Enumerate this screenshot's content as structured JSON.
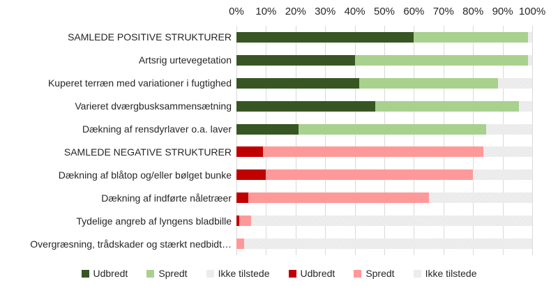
{
  "colors": {
    "positive_udbredt": "#375623",
    "positive_spredt": "#a9d18e",
    "negative_udbredt": "#c00000",
    "negative_spredt": "#ff9999",
    "ikke_tilstede": "#f1f1f1",
    "gridline": "#d9d9d9"
  },
  "legend": {
    "items": [
      {
        "label": "Udbredt",
        "color": "#375623"
      },
      {
        "label": "Spredt",
        "color": "#a9d18e"
      },
      {
        "label": "Ikke tilstede",
        "color": "#f1f1f1"
      },
      {
        "label": "Udbredt",
        "color": "#c00000"
      },
      {
        "label": "Spredt",
        "color": "#ff9999"
      },
      {
        "label": "Ikke tilstede",
        "color": "#f1f1f1"
      }
    ]
  },
  "chart_data": {
    "type": "bar",
    "orientation": "horizontal",
    "stacked": true,
    "x_range": [
      0,
      100
    ],
    "x_ticks": [
      "0%",
      "10%",
      "20%",
      "30%",
      "40%",
      "50%",
      "60%",
      "70%",
      "80%",
      "90%",
      "100%"
    ],
    "legend_position": "bottom",
    "grid": true,
    "rows": [
      {
        "label": "SAMLEDE POSITIVE STRUKTURER",
        "group": "positive",
        "segments": [
          {
            "name": "Udbredt",
            "color": "#375623",
            "value": 60
          },
          {
            "name": "Spredt",
            "color": "#a9d18e",
            "value": 38.5
          },
          {
            "name": "Ikke tilstede",
            "color": "#f1f1f1",
            "value": 1.5
          }
        ]
      },
      {
        "label": "Artsrig urtevegetation",
        "group": "positive",
        "segments": [
          {
            "name": "Udbredt",
            "color": "#375623",
            "value": 40
          },
          {
            "name": "Spredt",
            "color": "#a9d18e",
            "value": 58.5
          },
          {
            "name": "Ikke tilstede",
            "color": "#f1f1f1",
            "value": 1.5
          }
        ]
      },
      {
        "label": "Kuperet terræn med variationer i fugtighed",
        "group": "positive",
        "segments": [
          {
            "name": "Udbredt",
            "color": "#375623",
            "value": 41.5
          },
          {
            "name": "Spredt",
            "color": "#a9d18e",
            "value": 47
          },
          {
            "name": "Ikke tilstede",
            "color": "#f1f1f1",
            "value": 11.5
          }
        ]
      },
      {
        "label": "Varieret dværgbusksammensætning",
        "group": "positive",
        "segments": [
          {
            "name": "Udbredt",
            "color": "#375623",
            "value": 47
          },
          {
            "name": "Spredt",
            "color": "#a9d18e",
            "value": 48.5
          },
          {
            "name": "Ikke tilstede",
            "color": "#f1f1f1",
            "value": 4.5
          }
        ]
      },
      {
        "label": "Dækning af rensdyrlaver o.a. laver",
        "group": "positive",
        "segments": [
          {
            "name": "Udbredt",
            "color": "#375623",
            "value": 21
          },
          {
            "name": "Spredt",
            "color": "#a9d18e",
            "value": 63.5
          },
          {
            "name": "Ikke tilstede",
            "color": "#f1f1f1",
            "value": 15.5
          }
        ]
      },
      {
        "label": "SAMLEDE NEGATIVE STRUKTURER",
        "group": "negative",
        "segments": [
          {
            "name": "Udbredt",
            "color": "#c00000",
            "value": 9
          },
          {
            "name": "Spredt",
            "color": "#ff9999",
            "value": 74.5
          },
          {
            "name": "Ikke tilstede",
            "color": "#f1f1f1",
            "value": 16.5
          }
        ]
      },
      {
        "label": "Dækning af blåtop og/eller bølget bunke",
        "group": "negative",
        "segments": [
          {
            "name": "Udbredt",
            "color": "#c00000",
            "value": 10
          },
          {
            "name": "Spredt",
            "color": "#ff9999",
            "value": 70
          },
          {
            "name": "Ikke tilstede",
            "color": "#f1f1f1",
            "value": 20
          }
        ]
      },
      {
        "label": "Dækning af indførte nåletræer",
        "group": "negative",
        "segments": [
          {
            "name": "Udbredt",
            "color": "#c00000",
            "value": 4
          },
          {
            "name": "Spredt",
            "color": "#ff9999",
            "value": 61
          },
          {
            "name": "Ikke tilstede",
            "color": "#f1f1f1",
            "value": 35
          }
        ]
      },
      {
        "label": "Tydelige angreb af lyngens bladbille",
        "group": "negative",
        "segments": [
          {
            "name": "Udbredt",
            "color": "#c00000",
            "value": 1
          },
          {
            "name": "Spredt",
            "color": "#ff9999",
            "value": 4
          },
          {
            "name": "Ikke tilstede",
            "color": "#f1f1f1",
            "value": 95
          }
        ]
      },
      {
        "label": "Overgræsning, trådskader og stærkt nedbidt…",
        "group": "negative",
        "segments": [
          {
            "name": "Udbredt",
            "color": "#c00000",
            "value": 0
          },
          {
            "name": "Spredt",
            "color": "#ff9999",
            "value": 2.5
          },
          {
            "name": "Ikke tilstede",
            "color": "#f1f1f1",
            "value": 97.5
          }
        ]
      }
    ]
  }
}
